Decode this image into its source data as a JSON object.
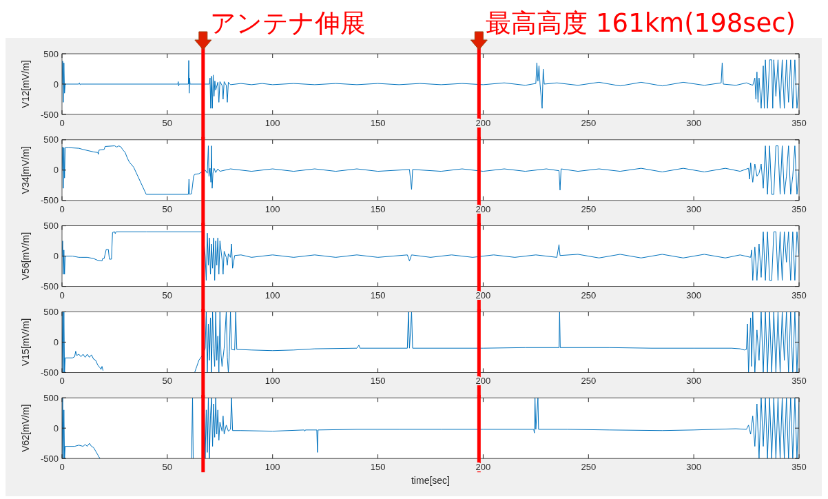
{
  "chart_data": [
    {
      "type": "line",
      "ylabel": "V12[mV/m]",
      "xlim": [
        0,
        350
      ],
      "xticks": [
        0,
        50,
        100,
        150,
        200,
        250,
        300,
        350
      ],
      "ylim": [
        -500,
        500
      ],
      "yticks": [
        -500,
        0,
        500
      ],
      "grid": false,
      "ref_lines": [
        {
          "axis": "x",
          "value": 67,
          "label": "アンテナ伸展",
          "color": "#ff0000"
        },
        {
          "axis": "x",
          "value": 198,
          "label": "最高高度 161km(198sec)",
          "color": "#ff0000"
        }
      ],
      "series": [
        {
          "color": "#0072bd",
          "x": [
            0,
            0.3,
            0.6,
            0.9,
            1.2,
            1.5,
            8,
            8.3,
            8.6,
            9,
            55,
            55.2,
            55.4,
            55.6,
            60,
            60.2,
            60.4,
            60.6,
            60.8,
            67,
            70,
            70.3,
            70.6,
            71,
            71.4,
            71.8,
            72.2,
            72.6,
            73,
            74,
            74.5,
            75,
            76,
            76.5,
            77,
            78,
            78.5,
            79,
            80,
            85,
            90,
            95,
            100,
            110,
            120,
            130,
            140,
            150,
            160,
            170,
            180,
            190,
            200,
            210,
            220,
            225,
            225.5,
            226,
            226.5,
            227,
            228,
            228.5,
            229,
            235,
            245,
            255,
            265,
            275,
            285,
            295,
            305,
            313,
            313.5,
            314,
            320,
            325,
            328,
            329,
            329.5,
            330,
            330.5,
            331,
            332,
            333,
            333.5,
            334,
            335,
            336,
            337,
            337.5,
            338,
            339,
            340,
            341,
            342,
            343,
            344,
            345,
            346,
            347,
            348,
            349,
            350
          ],
          "values": [
            0,
            380,
            -300,
            350,
            -150,
            0,
            0,
            20,
            -10,
            0,
            0,
            40,
            -30,
            0,
            0,
            390,
            -150,
            100,
            0,
            0,
            0,
            100,
            -400,
            130,
            -400,
            150,
            -200,
            50,
            -100,
            30,
            -300,
            40,
            -20,
            -250,
            40,
            -20,
            -300,
            30,
            -10,
            10,
            -10,
            10,
            -10,
            10,
            -10,
            10,
            -10,
            10,
            -10,
            10,
            -10,
            10,
            -10,
            20,
            -20,
            10,
            350,
            50,
            300,
            0,
            -400,
            250,
            0,
            20,
            -20,
            30,
            -30,
            30,
            -30,
            30,
            -20,
            20,
            350,
            0,
            -20,
            20,
            -20,
            100,
            -250,
            200,
            -300,
            100,
            -400,
            300,
            -400,
            400,
            -400,
            400,
            400,
            -400,
            400,
            -200,
            400,
            -400,
            400,
            -400,
            400,
            -300,
            400,
            -400,
            400,
            -400,
            0
          ]
        }
      ]
    },
    {
      "type": "line",
      "ylabel": "V34[mV/m]",
      "xlim": [
        0,
        350
      ],
      "xticks": [
        0,
        50,
        100,
        150,
        200,
        250,
        300,
        350
      ],
      "ylim": [
        -500,
        500
      ],
      "yticks": [
        -500,
        0,
        500
      ],
      "grid": false,
      "ref_lines": [
        {
          "axis": "x",
          "value": 67,
          "color": "#ff0000"
        },
        {
          "axis": "x",
          "value": 198,
          "color": "#ff0000"
        }
      ],
      "series": [
        {
          "color": "#0072bd",
          "x": [
            0,
            0.3,
            0.6,
            0.9,
            1.2,
            1.5,
            3,
            8,
            10,
            15,
            17,
            17.3,
            17.6,
            20,
            20.5,
            25,
            26,
            27,
            28,
            29,
            30,
            31,
            32,
            34,
            36,
            38,
            40,
            50,
            60,
            60.3,
            60.6,
            61.5,
            62,
            62.5,
            63,
            65,
            67,
            68,
            69,
            69.5,
            69.8,
            70.3,
            70.7,
            71,
            71.3,
            71.7,
            72.2,
            73,
            74,
            75,
            80,
            90,
            100,
            110,
            120,
            130,
            140,
            150,
            165,
            166,
            166.5,
            180,
            190,
            200,
            210,
            220,
            230,
            236,
            236.5,
            237,
            245,
            255,
            265,
            275,
            285,
            295,
            305,
            315,
            322,
            326,
            326.5,
            327,
            328,
            329,
            330,
            331,
            332,
            333,
            334,
            335,
            336,
            337,
            338,
            339,
            340,
            341,
            342,
            343,
            344,
            345,
            346,
            347,
            348,
            349,
            350
          ],
          "values": [
            0,
            380,
            -300,
            370,
            -130,
            370,
            370,
            360,
            340,
            300,
            290,
            260,
            330,
            340,
            390,
            400,
            380,
            400,
            380,
            330,
            290,
            200,
            130,
            50,
            -100,
            -250,
            -400,
            -400,
            -400,
            -150,
            -400,
            -390,
            -250,
            -100,
            -70,
            -60,
            -20,
            0,
            -50,
            400,
            -100,
            30,
            -200,
            400,
            -300,
            -50,
            30,
            -40,
            20,
            -20,
            20,
            -20,
            20,
            -20,
            20,
            -20,
            20,
            -20,
            10,
            -320,
            10,
            -20,
            20,
            -20,
            20,
            -20,
            20,
            -10,
            -330,
            20,
            -20,
            20,
            -20,
            30,
            -30,
            30,
            -30,
            30,
            -20,
            30,
            -150,
            120,
            -200,
            100,
            -100,
            -50,
            100,
            -300,
            400,
            -400,
            400,
            -400,
            -400,
            400,
            400,
            -400,
            400,
            -400,
            -100,
            400,
            -400,
            -100,
            400,
            -400,
            0
          ]
        }
      ]
    },
    {
      "type": "line",
      "ylabel": "V56[mV/m]",
      "xlim": [
        0,
        350
      ],
      "xticks": [
        0,
        50,
        100,
        150,
        200,
        250,
        300,
        350
      ],
      "ylim": [
        -500,
        500
      ],
      "yticks": [
        -500,
        0,
        500
      ],
      "grid": false,
      "ref_lines": [
        {
          "axis": "x",
          "value": 67,
          "color": "#ff0000"
        },
        {
          "axis": "x",
          "value": 198,
          "color": "#ff0000"
        }
      ],
      "series": [
        {
          "color": "#0072bd",
          "x": [
            0,
            0.3,
            0.6,
            0.9,
            1.2,
            1.5,
            5,
            8,
            9,
            12,
            15,
            17,
            19,
            19.3,
            20,
            21,
            22,
            22.5,
            23.5,
            24,
            25,
            25.3,
            25.6,
            40,
            67,
            68,
            68.5,
            69,
            69.5,
            70,
            70.5,
            71,
            71.5,
            72,
            72.5,
            73,
            73.5,
            74,
            74.5,
            75,
            76,
            76.5,
            77,
            78,
            78.5,
            79,
            80,
            80.5,
            81,
            82,
            85,
            90,
            100,
            110,
            120,
            130,
            140,
            150,
            164,
            165,
            166,
            175,
            185,
            195,
            205,
            215,
            225,
            235,
            236,
            236.5,
            245,
            255,
            265,
            275,
            285,
            295,
            305,
            315,
            322,
            327,
            327.5,
            328,
            329,
            330,
            331,
            332,
            333,
            334,
            335,
            336,
            337,
            338,
            339,
            340,
            341,
            342,
            343,
            344,
            345,
            346,
            347,
            348,
            349,
            350
          ],
          "values": [
            0,
            250,
            -300,
            100,
            -300,
            0,
            0,
            -20,
            -20,
            -20,
            -40,
            -70,
            -80,
            -40,
            -40,
            110,
            110,
            -50,
            -50,
            390,
            400,
            370,
            400,
            400,
            400,
            0,
            -400,
            380,
            -150,
            300,
            -300,
            200,
            -200,
            300,
            -400,
            250,
            -150,
            300,
            -300,
            250,
            -50,
            -300,
            80,
            -20,
            -150,
            40,
            -20,
            200,
            -200,
            10,
            20,
            -20,
            20,
            -20,
            20,
            -20,
            20,
            -20,
            20,
            -80,
            20,
            -20,
            20,
            -20,
            20,
            -20,
            20,
            -20,
            190,
            10,
            30,
            -30,
            30,
            -30,
            30,
            -30,
            30,
            -30,
            20,
            -20,
            100,
            -400,
            150,
            -400,
            200,
            -350,
            400,
            -400,
            400,
            -400,
            -400,
            400,
            400,
            -400,
            400,
            -400,
            400,
            -100,
            400,
            -400,
            400,
            -400,
            400,
            0
          ]
        }
      ]
    },
    {
      "type": "line",
      "ylabel": "V15[mV/m]",
      "xlim": [
        0,
        350
      ],
      "xticks": [
        0,
        50,
        100,
        150,
        200,
        250,
        300,
        350
      ],
      "ylim": [
        -500,
        500
      ],
      "yticks": [
        -500,
        0,
        500
      ],
      "grid": false,
      "ref_lines": [
        {
          "axis": "x",
          "value": 67,
          "color": "#ff0000"
        },
        {
          "axis": "x",
          "value": 198,
          "color": "#ff0000"
        }
      ],
      "series": [
        {
          "color": "#0072bd",
          "x": [
            0,
            0.3,
            0.6,
            0.9,
            1.2,
            1.5,
            5,
            6,
            6.5,
            7,
            8,
            9,
            10,
            11,
            12,
            13,
            14,
            15,
            16,
            17,
            18,
            18.5,
            19,
            19.5,
            40,
            63,
            64,
            65,
            66,
            67,
            68,
            68.5,
            69,
            69.5,
            70,
            70.5,
            71,
            71.5,
            72,
            72.5,
            73,
            73.5,
            74,
            74.5,
            75,
            75.5,
            76,
            77,
            78,
            78.5,
            79,
            79.5,
            80,
            80.5,
            82,
            82.5,
            83,
            90,
            100,
            110,
            120,
            140,
            141,
            141.5,
            164,
            164.5,
            165,
            166,
            166.5,
            200,
            220,
            236,
            236.3,
            236.6,
            260,
            280,
            300,
            318,
            322,
            324,
            325,
            325.5,
            326,
            327,
            327.5,
            328,
            329,
            330,
            331,
            332,
            333,
            334,
            335,
            336,
            337,
            338,
            339,
            340,
            341,
            342,
            343,
            344,
            345,
            346,
            347,
            348,
            349,
            350
          ],
          "values": [
            -500,
            500,
            -500,
            500,
            -500,
            -260,
            -260,
            -240,
            -150,
            -220,
            -200,
            -240,
            -200,
            -250,
            -200,
            -250,
            -210,
            -280,
            -300,
            -380,
            -420,
            -450,
            -400,
            -470,
            null,
            -500,
            -400,
            -300,
            -250,
            -200,
            -100,
            500,
            -500,
            300,
            -300,
            400,
            -500,
            500,
            -100,
            -400,
            500,
            -300,
            100,
            -500,
            500,
            -200,
            -400,
            -100,
            500,
            -250,
            -500,
            -150,
            500,
            -120,
            -130,
            500,
            -120,
            -130,
            -140,
            -130,
            -110,
            -100,
            -50,
            -100,
            -100,
            500,
            -100,
            500,
            -100,
            -100,
            -90,
            -90,
            500,
            -90,
            -90,
            -100,
            -100,
            -100,
            -110,
            -130,
            -120,
            300,
            -500,
            400,
            -400,
            500,
            -500,
            200,
            -300,
            500,
            -500,
            500,
            -500,
            500,
            -500,
            500,
            -500,
            500,
            -500,
            500,
            -300,
            500,
            -500,
            500,
            -500,
            500,
            -500,
            500
          ]
        }
      ]
    },
    {
      "type": "line",
      "ylabel": "V62[mV/m]",
      "xlabel": "time[sec]",
      "xlim": [
        0,
        350
      ],
      "xticks": [
        0,
        50,
        100,
        150,
        200,
        250,
        300,
        350
      ],
      "ylim": [
        -500,
        500
      ],
      "yticks": [
        -500,
        0,
        500
      ],
      "grid": false,
      "ref_lines": [
        {
          "axis": "x",
          "value": 67,
          "color": "#ff0000"
        },
        {
          "axis": "x",
          "value": 198,
          "color": "#ff0000"
        }
      ],
      "series": [
        {
          "color": "#0072bd",
          "x": [
            0,
            0.3,
            0.6,
            0.9,
            1.2,
            1.5,
            6,
            8,
            10,
            11,
            12,
            13,
            14,
            15,
            16,
            17,
            18,
            40,
            61.5,
            62,
            62.3,
            64,
            67,
            67.5,
            68,
            68.5,
            69,
            69.5,
            70,
            70.5,
            71,
            71.5,
            72,
            72.5,
            73,
            73.5,
            74,
            74.5,
            75,
            76,
            76.5,
            77,
            78,
            79,
            80,
            80.5,
            81,
            85,
            100,
            115,
            115.3,
            115.6,
            121,
            121.3,
            121.6,
            140,
            160,
            180,
            200,
            224,
            224.3,
            224.6,
            225,
            226,
            226.3,
            240,
            260,
            285,
            300,
            320,
            325,
            326,
            327,
            328,
            329,
            330,
            331,
            332,
            333,
            334,
            335,
            336,
            337,
            338,
            339,
            340,
            341,
            342,
            343,
            344,
            345,
            346,
            347,
            348,
            349,
            350
          ],
          "values": [
            -500,
            500,
            -500,
            300,
            -500,
            -300,
            -300,
            -280,
            -300,
            -270,
            -300,
            -250,
            -300,
            -320,
            -380,
            -440,
            -500,
            null,
            -500,
            500,
            -500,
            null,
            -300,
            500,
            -500,
            300,
            -400,
            500,
            -500,
            200,
            500,
            -300,
            400,
            -150,
            500,
            -100,
            300,
            -200,
            100,
            -50,
            200,
            -100,
            50,
            -50,
            -20,
            500,
            -40,
            -40,
            -50,
            -30,
            -50,
            -30,
            -30,
            -400,
            -30,
            -20,
            -20,
            -20,
            -20,
            -20,
            -80,
            500,
            -20,
            500,
            -20,
            -20,
            -30,
            -40,
            -30,
            -10,
            -20,
            50,
            -100,
            200,
            -300,
            400,
            -500,
            500,
            -300,
            500,
            -500,
            500,
            -500,
            500,
            -500,
            500,
            -500,
            500,
            -500,
            500,
            -500,
            500,
            -500,
            500,
            -500,
            500
          ]
        }
      ]
    }
  ]
}
